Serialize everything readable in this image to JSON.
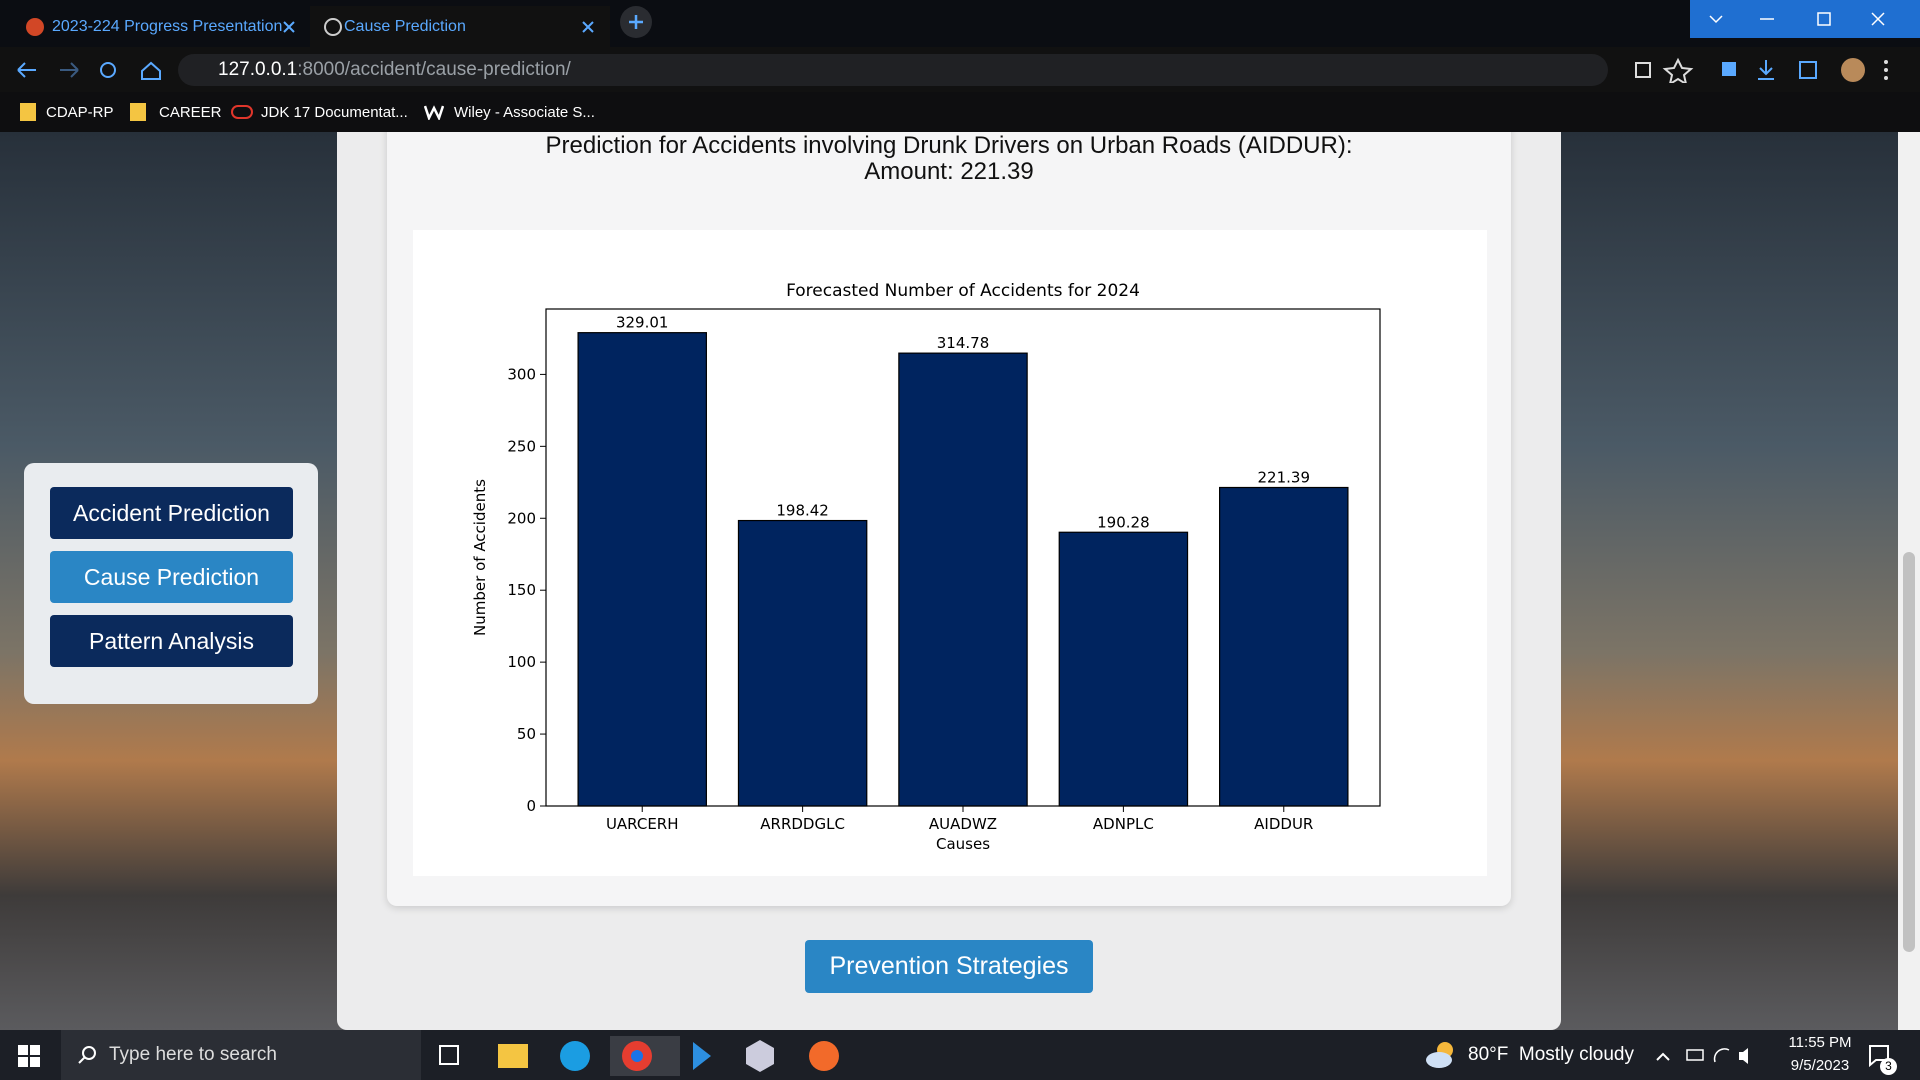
{
  "browser": {
    "tabs": [
      {
        "title": "2023-224 Progress Presentation"
      },
      {
        "title": "Cause Prediction"
      }
    ],
    "url_host": "127.0.0.1",
    "url_path": ":8000/accident/cause-prediction/",
    "bookmarks": [
      "CDAP-RP",
      "CAREER",
      "JDK 17 Documentat...",
      "Wiley - Associate S..."
    ]
  },
  "sidebar": {
    "buttons": [
      "Accident Prediction",
      "Cause Prediction",
      "Pattern Analysis"
    ]
  },
  "result": {
    "heading": "Prediction for Accidents involving Drunk Drivers on Urban Roads (AIDDUR):",
    "amount_label": "Amount: 221.39"
  },
  "chart_data": {
    "type": "bar",
    "title": "Forecasted Number of Accidents for 2024",
    "xlabel": "Causes",
    "ylabel": "Number of Accidents",
    "categories": [
      "UARCERH",
      "ARRDDGLC",
      "AUADWZ",
      "ADNPLC",
      "AIDDUR"
    ],
    "values": [
      329.01,
      198.42,
      314.78,
      190.28,
      221.39
    ],
    "color": "#00245f",
    "edgecolor": "#000000",
    "ylim": [
      0,
      345.46
    ],
    "yticks": [
      0,
      50,
      100,
      150,
      200,
      250,
      300
    ],
    "grid": false
  },
  "action": {
    "button": "Prevention Strategies"
  },
  "taskbar": {
    "search": "Type here to search",
    "weather": "80°F  Mostly cloudy",
    "time": "11:55 PM",
    "date": "9/5/2023",
    "notifications": "3"
  }
}
